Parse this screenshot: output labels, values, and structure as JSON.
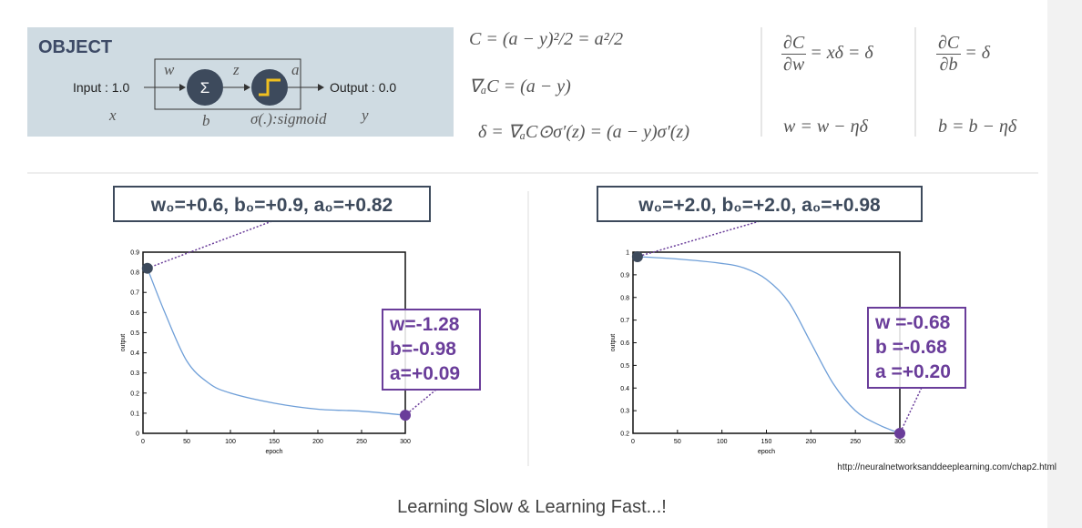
{
  "object_panel": {
    "title": "OBJECT",
    "input": "Input : 1.0",
    "x": "x",
    "w": "w",
    "sum": "Σ",
    "z": "z",
    "a": "a",
    "b": "b",
    "activation": "σ(.):sigmoid",
    "y": "y",
    "output": "Output : 0.0"
  },
  "equations": {
    "cost": "C = (a − y)²/2 = a²/2",
    "grad": "∇ₐC = (a − y)",
    "delta": "δ = ∇ₐC⊙σ′(z) = (a − y)σ′(z)",
    "dw": {
      "num": "∂C",
      "den": "∂w",
      "rest": "= xδ = δ"
    },
    "db": {
      "num": "∂C",
      "den": "∂b",
      "rest": "= δ"
    },
    "w_update": "w = w − ηδ",
    "b_update": "b = b − ηδ"
  },
  "chart_data": [
    {
      "type": "line",
      "xlabel": "epoch",
      "ylabel": "output",
      "color": "#6f9fd8",
      "x": [
        5,
        25,
        50,
        75,
        100,
        150,
        200,
        250,
        300
      ],
      "values": [
        0.82,
        0.6,
        0.36,
        0.25,
        0.2,
        0.15,
        0.12,
        0.11,
        0.09
      ],
      "xlim": [
        0,
        300
      ],
      "xticks": [
        0,
        50,
        100,
        150,
        200,
        250,
        300
      ],
      "ylim": [
        0,
        0.9
      ],
      "yticks": [
        0,
        0.1,
        0.2,
        0.3,
        0.4,
        0.5,
        0.6,
        0.7,
        0.8,
        0.9
      ],
      "annotations": {
        "start": "w₀=+0.6, b₀=+0.9, a₀=+0.82",
        "end": [
          "w=-1.28",
          "b=-0.98",
          "a=+0.09"
        ]
      }
    },
    {
      "type": "line",
      "xlabel": "epoch",
      "ylabel": "output",
      "color": "#6f9fd8",
      "x": [
        5,
        50,
        100,
        125,
        150,
        175,
        200,
        225,
        250,
        275,
        300
      ],
      "values": [
        0.98,
        0.97,
        0.95,
        0.93,
        0.88,
        0.78,
        0.6,
        0.42,
        0.3,
        0.24,
        0.2
      ],
      "xlim": [
        0,
        300
      ],
      "xticks": [
        0,
        50,
        100,
        150,
        200,
        250,
        300
      ],
      "ylim": [
        0.2,
        1
      ],
      "yticks": [
        0.2,
        0.3,
        0.4,
        0.5,
        0.6,
        0.7,
        0.8,
        0.9,
        1
      ],
      "annotations": {
        "start": "w₀=+2.0, b₀=+2.0, a₀=+0.98",
        "end": [
          "w =-0.68",
          "b =-0.68",
          "a =+0.20"
        ]
      }
    }
  ],
  "source": "http://neuralnetworksanddeeplearning.com/chap2.html",
  "caption": "Learning Slow & Learning Fast...!"
}
